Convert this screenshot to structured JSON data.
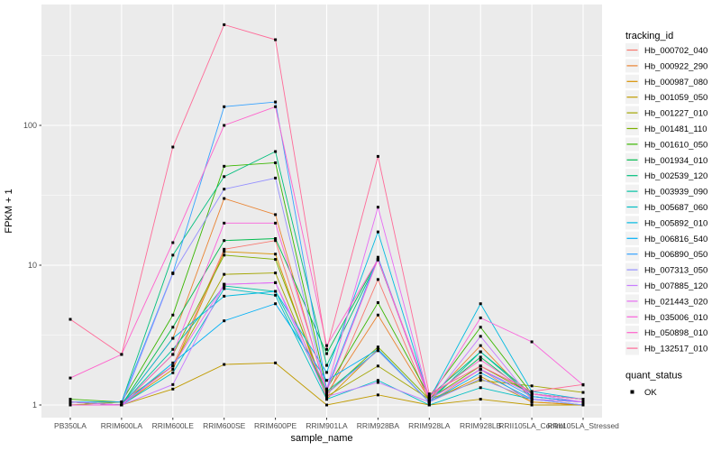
{
  "chart_data": {
    "type": "line",
    "title": "",
    "xlabel": "sample_name",
    "ylabel": "FPKM + 1",
    "y_scale": "log10",
    "y_ticks": [
      1,
      10,
      100
    ],
    "grid": "on",
    "panel_bg": "#EBEBEB",
    "grid_color": "#FFFFFF",
    "tick_text_color": "#4D4D4D",
    "axis_title_color": "#000000",
    "point_color": "#000000",
    "legend_position": "right",
    "legend_title": "tracking_id",
    "legend2_title": "quant_status",
    "legend2_items": [
      {
        "label": "OK",
        "marker": "black-point"
      }
    ],
    "legend_key_bg": "#F2F2F2",
    "categories": [
      "PB350LA",
      "RRIM600LA",
      "RRIM600LE",
      "RRIM600SE",
      "RRIM600PE",
      "RRIM901LA",
      "RRIM928BA",
      "RRIM928LA",
      "RRIM928LB",
      "RRII105LA_Control",
      "RRII105LA_Stressed"
    ],
    "series": [
      {
        "name": "Hb_000702_040",
        "color": "#F8766D",
        "values": [
          1.05,
          1.0,
          1.9,
          13.0,
          15.0,
          1.1,
          7.9,
          1.05,
          1.8,
          1.05,
          1.0
        ]
      },
      {
        "name": "Hb_000922_290",
        "color": "#EA8331",
        "values": [
          1.05,
          1.0,
          3.0,
          30.0,
          23.0,
          1.2,
          4.4,
          1.1,
          2.66,
          1.1,
          1.05
        ]
      },
      {
        "name": "Hb_000987_080",
        "color": "#D89000",
        "values": [
          1.0,
          1.0,
          1.8,
          12.5,
          12.0,
          1.1,
          2.5,
          1.05,
          1.6,
          1.05,
          1.0
        ]
      },
      {
        "name": "Hb_001059_050",
        "color": "#C09B00",
        "values": [
          1.05,
          1.0,
          1.3,
          1.95,
          2.0,
          1.0,
          1.18,
          1.0,
          1.1,
          1.0,
          1.0
        ]
      },
      {
        "name": "Hb_001227_010",
        "color": "#A3A500",
        "values": [
          1.0,
          1.05,
          1.9,
          8.6,
          8.8,
          1.15,
          1.9,
          1.1,
          1.5,
          1.37,
          1.23
        ]
      },
      {
        "name": "Hb_001481_110",
        "color": "#7CAE00",
        "values": [
          1.05,
          1.0,
          2.3,
          11.8,
          11.0,
          1.2,
          2.6,
          1.1,
          1.9,
          1.2,
          1.1
        ]
      },
      {
        "name": "Hb_001610_050",
        "color": "#39B600",
        "values": [
          1.1,
          1.05,
          4.4,
          51.0,
          54.0,
          1.3,
          5.4,
          1.15,
          3.6,
          1.2,
          1.1
        ]
      },
      {
        "name": "Hb_001934_010",
        "color": "#00BB4E",
        "values": [
          1.05,
          1.0,
          3.6,
          15.0,
          15.5,
          2.33,
          11.0,
          1.1,
          2.2,
          1.15,
          1.05
        ]
      },
      {
        "name": "Hb_002539_120",
        "color": "#00BF7D",
        "values": [
          1.05,
          1.05,
          11.8,
          43.0,
          65.0,
          1.92,
          10.9,
          1.15,
          2.4,
          1.2,
          1.1
        ]
      },
      {
        "name": "Hb_003939_090",
        "color": "#00C1A3",
        "values": [
          1.0,
          1.0,
          2.5,
          7.1,
          6.5,
          1.25,
          2.45,
          1.05,
          2.4,
          1.15,
          1.05
        ]
      },
      {
        "name": "Hb_005687_060",
        "color": "#00BFC4",
        "values": [
          1.0,
          1.0,
          1.7,
          6.8,
          6.1,
          1.1,
          1.5,
          1.0,
          1.33,
          1.1,
          1.0
        ]
      },
      {
        "name": "Hb_005892_010",
        "color": "#00BAE0",
        "values": [
          1.05,
          1.0,
          3.0,
          6.0,
          6.5,
          1.71,
          17.3,
          1.1,
          5.3,
          1.25,
          1.1
        ]
      },
      {
        "name": "Hb_006816_540",
        "color": "#00B0F6",
        "values": [
          1.0,
          1.0,
          2.0,
          4.0,
          5.3,
          1.5,
          2.5,
          1.05,
          1.7,
          1.1,
          1.05
        ]
      },
      {
        "name": "Hb_006890_050",
        "color": "#35A2FF",
        "values": [
          1.05,
          1.05,
          8.8,
          136.0,
          147.0,
          1.3,
          11.4,
          1.1,
          1.8,
          1.15,
          1.05
        ]
      },
      {
        "name": "Hb_007313_050",
        "color": "#9590FF",
        "values": [
          1.0,
          1.0,
          8.7,
          35.0,
          42.0,
          1.2,
          2.45,
          1.05,
          1.54,
          1.1,
          1.0
        ]
      },
      {
        "name": "Hb_007885_120",
        "color": "#C77CFF",
        "values": [
          1.0,
          1.0,
          1.4,
          7.3,
          7.5,
          1.15,
          1.45,
          1.05,
          3.1,
          1.1,
          1.05
        ]
      },
      {
        "name": "Hb_021443_020",
        "color": "#E76BF3",
        "values": [
          1.05,
          1.0,
          1.9,
          7.3,
          7.5,
          1.3,
          26.0,
          1.1,
          1.8,
          1.2,
          1.05
        ]
      },
      {
        "name": "Hb_035006_010",
        "color": "#FA62DB",
        "values": [
          1.0,
          1.0,
          2.3,
          20.0,
          20.0,
          1.25,
          11.0,
          1.1,
          4.2,
          2.83,
          1.39
        ]
      },
      {
        "name": "Hb_050898_010",
        "color": "#FF61CC",
        "values": [
          1.56,
          2.3,
          14.5,
          100.0,
          136.0,
          2.66,
          11.0,
          1.15,
          2.1,
          1.2,
          1.1
        ]
      },
      {
        "name": "Hb_132517_010",
        "color": "#FF6A98",
        "values": [
          4.1,
          2.3,
          70.0,
          525.0,
          410.0,
          2.5,
          60.0,
          1.2,
          1.9,
          1.25,
          1.4
        ]
      }
    ]
  }
}
